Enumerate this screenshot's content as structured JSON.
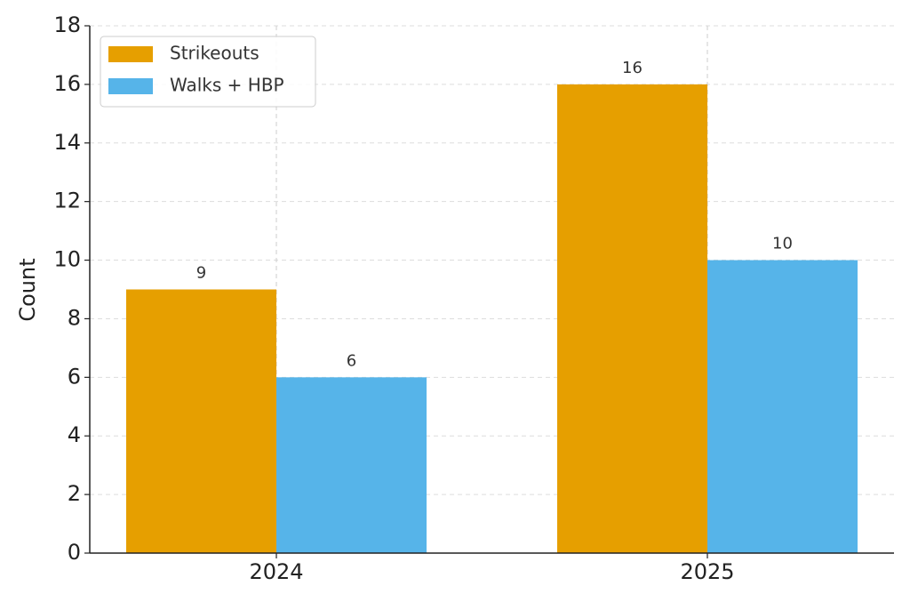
{
  "chart_data": {
    "type": "bar",
    "y_label": "Count",
    "categories": [
      "2024",
      "2025"
    ],
    "series": [
      {
        "name": "Strikeouts",
        "color": "#E69F00",
        "values": [
          9,
          16
        ]
      },
      {
        "name": "Walks + HBP",
        "color": "#56B4E9",
        "values": [
          6,
          10
        ]
      }
    ],
    "ylim": [
      0,
      18
    ],
    "yticks": [
      0,
      2,
      4,
      6,
      8,
      10,
      12,
      14,
      16,
      18
    ],
    "grid": true,
    "legend": "upper left"
  }
}
